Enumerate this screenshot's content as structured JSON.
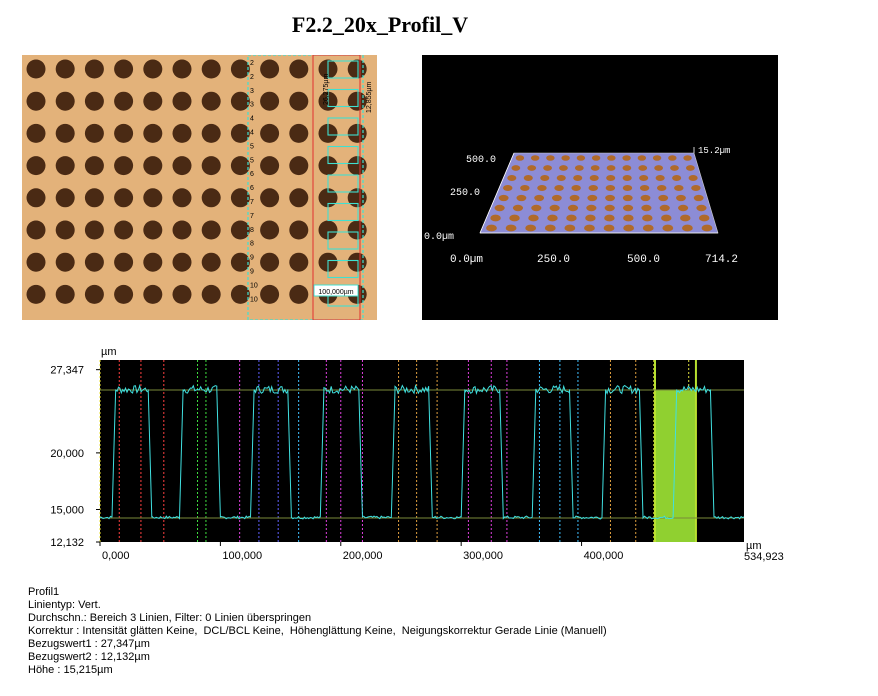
{
  "title": "F2.2_20x_Profil_V",
  "micrograph": {
    "rows": 8,
    "cols": 12,
    "labels": [
      "2",
      "2",
      "3",
      "3",
      "4",
      "4",
      "5",
      "5",
      "6",
      "6",
      "7",
      "7",
      "8",
      "8",
      "9",
      "9",
      "10",
      "10"
    ],
    "measure_v1": "26,275µm",
    "measure_v2": "12,855µm",
    "scale_bar": "100,000µm",
    "colors": {
      "background": "#e3b27a",
      "dot": "#4a2a14",
      "overlay": "#40e0d0",
      "marker": "#e03030"
    }
  },
  "view3d": {
    "z_max": "15.2µm",
    "y_labels": [
      "500.0",
      "250.0",
      "0.0µm"
    ],
    "x_labels": [
      "0.0µm",
      "250.0",
      "500.0",
      "714.2"
    ],
    "colors": {
      "background": "#000000",
      "plane": "#8c8cd6",
      "bump": "#b06a2a",
      "text": "#ffffff"
    }
  },
  "chart_data": {
    "type": "line",
    "ylabel": "µm",
    "xlabel": "µm",
    "xlim": [
      0,
      534.923
    ],
    "ylim": [
      12.132,
      28.2
    ],
    "y_ticks": [
      {
        "value": 27.347,
        "label": "27,347"
      },
      {
        "value": 20.0,
        "label": "20,000"
      },
      {
        "value": 15.0,
        "label": "15,000"
      },
      {
        "value": 12.132,
        "label": "12,132"
      }
    ],
    "x_ticks": [
      {
        "value": 0,
        "label": "0,000"
      },
      {
        "value": 100,
        "label": "100,000"
      },
      {
        "value": 200,
        "label": "200,000"
      },
      {
        "value": 300,
        "label": "300,000"
      },
      {
        "value": 400,
        "label": "400,000"
      }
    ],
    "x_end_label": "534,923",
    "ref_high": 25.55,
    "ref_low": 14.25,
    "plateau_starts": [
      13,
      69,
      128,
      186,
      245,
      303,
      362,
      420,
      479
    ],
    "plateau_ends": [
      40,
      97,
      156,
      215,
      273,
      332,
      390,
      448,
      507
    ],
    "high_level": 25.6,
    "low_level": 14.3,
    "green_band": [
      461,
      495
    ],
    "cursor_lines": [
      {
        "x": 0,
        "color": "#e8e030"
      },
      {
        "x": 16,
        "color": "#ff4040"
      },
      {
        "x": 34,
        "color": "#ff4040"
      },
      {
        "x": 53,
        "color": "#ff4040"
      },
      {
        "x": 81,
        "color": "#40e040"
      },
      {
        "x": 88,
        "color": "#40e040"
      },
      {
        "x": 116,
        "color": "#e040e0"
      },
      {
        "x": 132,
        "color": "#6060ff"
      },
      {
        "x": 148,
        "color": "#6060ff"
      },
      {
        "x": 165,
        "color": "#40c0ff"
      },
      {
        "x": 188,
        "color": "#e040e0"
      },
      {
        "x": 200,
        "color": "#e040e0"
      },
      {
        "x": 218,
        "color": "#e040e0"
      },
      {
        "x": 248,
        "color": "#e0a040"
      },
      {
        "x": 263,
        "color": "#e0a040"
      },
      {
        "x": 280,
        "color": "#e0a040"
      },
      {
        "x": 306,
        "color": "#e040e0"
      },
      {
        "x": 325,
        "color": "#e040e0"
      },
      {
        "x": 338,
        "color": "#e040e0"
      },
      {
        "x": 365,
        "color": "#40c0ff"
      },
      {
        "x": 382,
        "color": "#40c0ff"
      },
      {
        "x": 397,
        "color": "#40c0ff"
      },
      {
        "x": 424,
        "color": "#e0a040"
      },
      {
        "x": 445,
        "color": "#e0a040"
      },
      {
        "x": 460,
        "color": "#e0e040"
      },
      {
        "x": 489,
        "color": "#e0e040"
      }
    ],
    "colors": {
      "background": "#000000",
      "trace": "#40e0e0",
      "ref_line": "#7a8a3a",
      "band": "#90d030"
    }
  },
  "info": {
    "lines": [
      "Profil1",
      "Linientyp: Vert.",
      "Durchschn.: Bereich 3 Linien, Filter: 0 Linien überspringen",
      "Korrektur : Intensität glätten Keine,  DCL/BCL Keine,  Höhenglättung Keine,  Neigungskorrektur Gerade Linie (Manuell)",
      "Bezugswert1 : 27,347µm",
      "Bezugswert2 : 12,132µm",
      "Höhe : 15,215µm"
    ]
  }
}
